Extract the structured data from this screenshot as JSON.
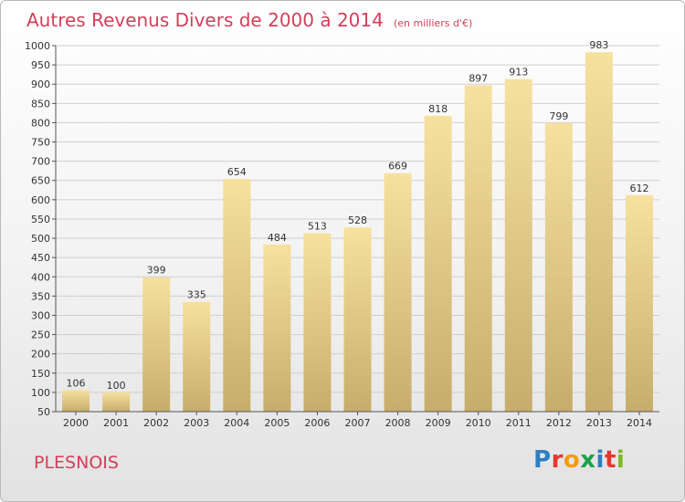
{
  "header": {
    "title": "Autres Revenus Divers de 2000 à 2014",
    "subtitle": "(en milliers d'€)"
  },
  "footer": {
    "town": "PLESNOIS",
    "logo_letters": [
      "P",
      "r",
      "o",
      "x",
      "i",
      "t",
      "i"
    ],
    "logo_colors": [
      "#2d7ec2",
      "#e8352d",
      "#f39c12",
      "#1aa34a",
      "#2d7ec2",
      "#e8352d",
      "#7db927"
    ]
  },
  "colors": {
    "title": "#d33f5a",
    "bar_light": "#f6e19f",
    "bar_dark": "#c7ad6b",
    "grid": "#cfcfcf"
  },
  "chart_data": {
    "type": "bar",
    "title": "Autres Revenus Divers de 2000 à 2014",
    "subtitle": "(en milliers d'€)",
    "categories": [
      "2000",
      "2001",
      "2002",
      "2003",
      "2004",
      "2005",
      "2006",
      "2007",
      "2008",
      "2009",
      "2010",
      "2011",
      "2012",
      "2013",
      "2014"
    ],
    "values": [
      106,
      100,
      399,
      335,
      654,
      484,
      513,
      528,
      669,
      818,
      897,
      913,
      799,
      983,
      612
    ],
    "ylim": [
      50,
      1000
    ],
    "yticks": [
      50,
      100,
      150,
      200,
      250,
      300,
      350,
      400,
      450,
      500,
      550,
      600,
      650,
      700,
      750,
      800,
      850,
      900,
      950,
      1000
    ],
    "grid": true,
    "data_labels": true,
    "legend": "none"
  }
}
